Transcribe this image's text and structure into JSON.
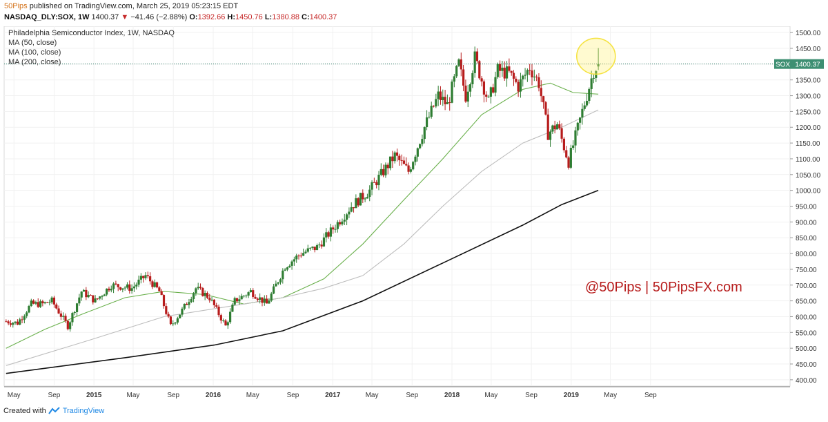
{
  "header": {
    "publisher": "50Pips",
    "published_text": "published on TradingView.com, March 25, 2019 05:23:15 EDT",
    "symbol": "NASDAQ_DLY:SOX, 1W",
    "last": "1400.37",
    "change": "−41.46 (−2.88%)",
    "open_label": "O:",
    "open": "1392.66",
    "high_label": "H:",
    "high": "1450.76",
    "low_label": "L:",
    "low": "1380.88",
    "close_label": "C:",
    "close": "1400.37"
  },
  "footer": {
    "created_with": "Created with",
    "brand": "TradingView"
  },
  "chart_data": {
    "type": "candlestick",
    "title": "Philadelphia Semiconductor Index, 1W, NASDAQ",
    "indicators": [
      "MA (50, close)",
      "MA (100, close)",
      "MA (200, close)"
    ],
    "symbol_tag": "SOX",
    "last_price_label": "1400.37",
    "annotation": "@50Pips | 50PipsFX.com",
    "ylim": [
      380,
      1520
    ],
    "yticks": [
      400,
      450,
      500,
      550,
      600,
      650,
      700,
      750,
      800,
      850,
      900,
      950,
      1000,
      1050,
      1100,
      1150,
      1200,
      1250,
      1300,
      1350,
      1400,
      1450,
      1500
    ],
    "ytick_labels": [
      "400.00",
      "450.00",
      "500.00",
      "550.00",
      "600.00",
      "650.00",
      "700.00",
      "750.00",
      "800.00",
      "850.00",
      "900.00",
      "950.00",
      "1000.00",
      "1050.00",
      "1100.00",
      "1150.00",
      "1200.00",
      "1250.00",
      "1300.00",
      "1350.00",
      "1400.00",
      "1450.00",
      "1500.00"
    ],
    "xlim": [
      "2014-04-01",
      "2020-11-01"
    ],
    "xticks": [
      {
        "date": "2014-05-01",
        "label": "May"
      },
      {
        "date": "2014-09-01",
        "label": "Sep"
      },
      {
        "date": "2015-01-01",
        "label": "2015"
      },
      {
        "date": "2015-05-01",
        "label": "May"
      },
      {
        "date": "2015-09-01",
        "label": "Sep"
      },
      {
        "date": "2016-01-01",
        "label": "2016"
      },
      {
        "date": "2016-05-01",
        "label": "May"
      },
      {
        "date": "2016-09-01",
        "label": "Sep"
      },
      {
        "date": "2017-01-01",
        "label": "2017"
      },
      {
        "date": "2017-05-01",
        "label": "May"
      },
      {
        "date": "2017-09-01",
        "label": "Sep"
      },
      {
        "date": "2018-01-01",
        "label": "2018"
      },
      {
        "date": "2018-05-01",
        "label": "May"
      },
      {
        "date": "2018-09-01",
        "label": "Sep"
      },
      {
        "date": "2019-01-01",
        "label": "2019"
      },
      {
        "date": "2019-05-01",
        "label": "May"
      },
      {
        "date": "2019-09-01",
        "label": "Sep"
      }
    ],
    "price_path": [
      [
        "2014-04-07",
        585
      ],
      [
        "2014-05-12",
        580
      ],
      [
        "2014-06-23",
        640
      ],
      [
        "2014-07-28",
        640
      ],
      [
        "2014-08-25",
        650
      ],
      [
        "2014-10-13",
        570
      ],
      [
        "2014-11-24",
        680
      ],
      [
        "2015-01-05",
        650
      ],
      [
        "2015-02-23",
        700
      ],
      [
        "2015-04-27",
        690
      ],
      [
        "2015-06-08",
        730
      ],
      [
        "2015-07-20",
        680
      ],
      [
        "2015-08-24",
        570
      ],
      [
        "2015-09-28",
        620
      ],
      [
        "2015-11-09",
        690
      ],
      [
        "2015-12-21",
        660
      ],
      [
        "2016-02-08",
        570
      ],
      [
        "2016-03-07",
        650
      ],
      [
        "2016-04-25",
        680
      ],
      [
        "2016-06-13",
        640
      ],
      [
        "2016-07-11",
        700
      ],
      [
        "2016-08-08",
        760
      ],
      [
        "2016-09-26",
        800
      ],
      [
        "2016-11-14",
        820
      ],
      [
        "2016-12-26",
        870
      ],
      [
        "2017-02-27",
        950
      ],
      [
        "2017-04-24",
        1000
      ],
      [
        "2017-05-29",
        1050
      ],
      [
        "2017-07-10",
        1110
      ],
      [
        "2017-08-21",
        1060
      ],
      [
        "2017-10-09",
        1200
      ],
      [
        "2017-11-20",
        1300
      ],
      [
        "2017-12-18",
        1270
      ],
      [
        "2018-01-22",
        1400
      ],
      [
        "2018-02-12",
        1300
      ],
      [
        "2018-03-12",
        1420
      ],
      [
        "2018-04-23",
        1280
      ],
      [
        "2018-05-21",
        1380
      ],
      [
        "2018-06-25",
        1370
      ],
      [
        "2018-07-23",
        1330
      ],
      [
        "2018-08-27",
        1390
      ],
      [
        "2018-09-24",
        1340
      ],
      [
        "2018-10-22",
        1180
      ],
      [
        "2018-11-19",
        1210
      ],
      [
        "2018-12-24",
        1090
      ],
      [
        "2019-02-04",
        1250
      ],
      [
        "2019-03-11",
        1380
      ],
      [
        "2019-03-25",
        1400
      ]
    ],
    "series": [
      {
        "name": "MA (50, close)",
        "color": "#6ab04c",
        "values": [
          [
            "2014-04-07",
            500
          ],
          [
            "2014-08-04",
            560
          ],
          [
            "2014-12-01",
            610
          ],
          [
            "2015-04-06",
            660
          ],
          [
            "2015-08-03",
            680
          ],
          [
            "2015-12-07",
            670
          ],
          [
            "2016-04-04",
            640
          ],
          [
            "2016-08-01",
            660
          ],
          [
            "2016-12-05",
            720
          ],
          [
            "2017-04-03",
            830
          ],
          [
            "2017-08-07",
            970
          ],
          [
            "2017-12-04",
            1100
          ],
          [
            "2018-04-02",
            1240
          ],
          [
            "2018-08-06",
            1320
          ],
          [
            "2018-10-29",
            1340
          ],
          [
            "2019-01-07",
            1310
          ],
          [
            "2019-03-25",
            1305
          ]
        ]
      },
      {
        "name": "MA (100, close)",
        "color": "#bdbdbd",
        "values": [
          [
            "2014-04-07",
            445
          ],
          [
            "2014-12-01",
            520
          ],
          [
            "2015-08-03",
            600
          ],
          [
            "2016-04-04",
            640
          ],
          [
            "2016-08-01",
            660
          ],
          [
            "2016-12-05",
            690
          ],
          [
            "2017-04-03",
            730
          ],
          [
            "2017-08-07",
            830
          ],
          [
            "2017-12-04",
            950
          ],
          [
            "2018-04-02",
            1060
          ],
          [
            "2018-08-06",
            1150
          ],
          [
            "2018-12-03",
            1200
          ],
          [
            "2019-03-25",
            1255
          ]
        ]
      },
      {
        "name": "MA (200, close)",
        "color": "#111111",
        "values": [
          [
            "2014-04-07",
            420
          ],
          [
            "2015-04-06",
            470
          ],
          [
            "2016-01-04",
            510
          ],
          [
            "2016-08-01",
            555
          ],
          [
            "2017-04-03",
            650
          ],
          [
            "2017-12-04",
            770
          ],
          [
            "2018-08-06",
            890
          ],
          [
            "2018-12-03",
            955
          ],
          [
            "2019-03-25",
            1000
          ]
        ]
      }
    ],
    "grid": true,
    "price_line": 1400.37,
    "highlight_circle": {
      "date": "2019-03-18",
      "value": 1425
    }
  }
}
